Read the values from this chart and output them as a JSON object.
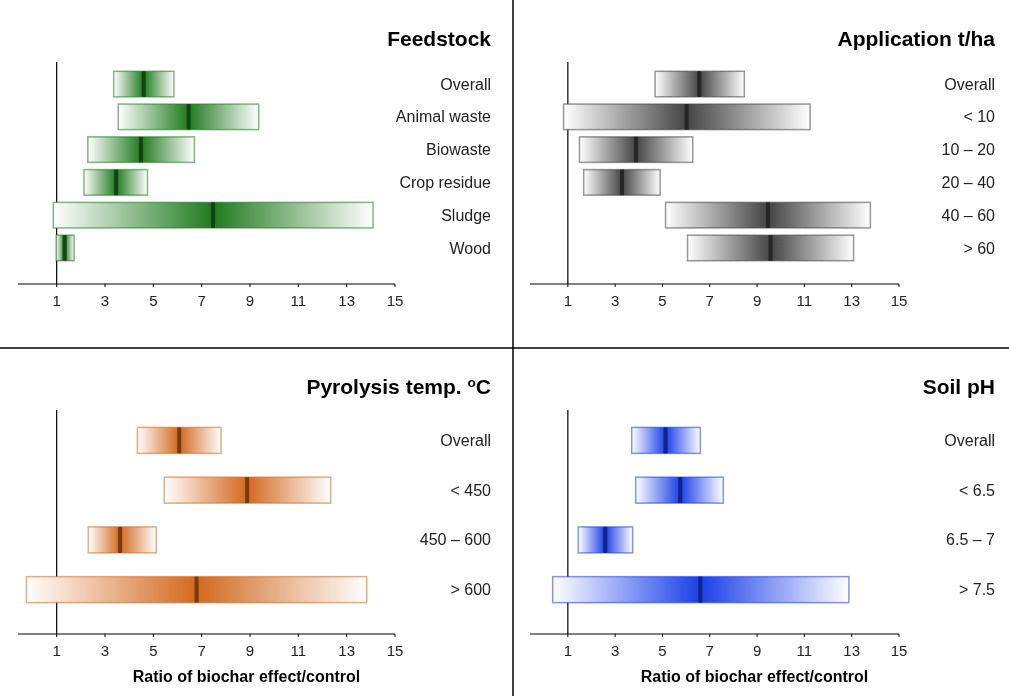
{
  "chart_data": [
    {
      "type": "box",
      "title": "Feedstock",
      "orientation": "horizontal",
      "color": "#1f7a1f",
      "categories": [
        "Overall",
        "Animal waste",
        "Biowaste",
        "Crop residue",
        "Sludge",
        "Wood"
      ],
      "boxes": [
        {
          "low": 3.36,
          "q1": 3.36,
          "median": 4.6,
          "q3": 5.85,
          "high": 5.85
        },
        {
          "low": 3.55,
          "q1": 3.55,
          "median": 6.46,
          "q3": 9.36,
          "high": 9.36
        },
        {
          "low": 2.29,
          "q1": 2.29,
          "median": 4.49,
          "q3": 6.7,
          "high": 6.7
        },
        {
          "low": 2.13,
          "q1": 2.13,
          "median": 3.46,
          "q3": 4.76,
          "high": 4.76
        },
        {
          "low": 0.86,
          "q1": 0.86,
          "median": 7.47,
          "q3": 14.09,
          "high": 14.09
        },
        {
          "low": 0.98,
          "q1": 0.98,
          "median": 1.33,
          "q3": 1.72,
          "high": 1.72
        }
      ],
      "xlim": [
        -0.6,
        15
      ],
      "xticks": [
        1,
        3,
        5,
        7,
        9,
        11,
        13,
        15
      ],
      "ref_lines": [
        {
          "axis": "x",
          "value": 1,
          "color": "#000000"
        }
      ],
      "grid": false
    },
    {
      "type": "box",
      "title": "Application t/ha",
      "orientation": "horizontal",
      "color": "#444444",
      "categories": [
        "Overall",
        "< 10",
        "10 – 20",
        "20 – 40",
        "40 – 60",
        "> 60"
      ],
      "boxes": [
        {
          "low": 4.69,
          "q1": 4.69,
          "median": 6.56,
          "q3": 8.46,
          "high": 8.46
        },
        {
          "low": 0.82,
          "q1": 0.82,
          "median": 6.02,
          "q3": 11.24,
          "high": 11.24
        },
        {
          "low": 1.49,
          "q1": 1.49,
          "median": 3.88,
          "q3": 6.28,
          "high": 6.28
        },
        {
          "low": 1.67,
          "q1": 1.67,
          "median": 3.29,
          "q3": 4.9,
          "high": 4.9
        },
        {
          "low": 5.13,
          "q1": 5.13,
          "median": 9.46,
          "q3": 13.79,
          "high": 13.79
        },
        {
          "low": 6.06,
          "q1": 6.06,
          "median": 9.57,
          "q3": 13.08,
          "high": 13.08
        }
      ],
      "xlim": [
        -0.6,
        15
      ],
      "xticks": [
        1,
        3,
        5,
        7,
        9,
        11,
        13,
        15
      ],
      "ref_lines": [
        {
          "axis": "x",
          "value": 1,
          "color": "#000000"
        }
      ],
      "grid": false
    },
    {
      "type": "box",
      "title": "Pyrolysis temp. $^{o}$C",
      "xlabel": "Ratio of biochar effect/control",
      "orientation": "horizontal",
      "color": "#d2691e",
      "categories": [
        "Overall",
        "< 450",
        "450 – 600",
        "> 600"
      ],
      "boxes": [
        {
          "low": 4.34,
          "q1": 4.34,
          "median": 6.07,
          "q3": 7.8,
          "high": 7.8
        },
        {
          "low": 5.45,
          "q1": 5.45,
          "median": 8.88,
          "q3": 12.34,
          "high": 12.34
        },
        {
          "low": 2.31,
          "q1": 2.31,
          "median": 3.62,
          "q3": 5.12,
          "high": 5.12
        },
        {
          "low": -0.25,
          "q1": -0.25,
          "median": 6.79,
          "q3": 13.83,
          "high": 13.83
        }
      ],
      "xlim": [
        -0.6,
        15
      ],
      "xticks": [
        1,
        3,
        5,
        7,
        9,
        11,
        13,
        15
      ],
      "ref_lines": [
        {
          "axis": "x",
          "value": 1,
          "color": "#000000"
        }
      ],
      "grid": false
    },
    {
      "type": "box",
      "title": "Soil pH",
      "xlabel": "Ratio of biochar effect/control",
      "orientation": "horizontal",
      "color": "#1a3fe8",
      "categories": [
        "Overall",
        "< 6.5",
        "6.5 – 7",
        "> 7.5"
      ],
      "boxes": [
        {
          "low": 3.7,
          "q1": 3.7,
          "median": 5.13,
          "q3": 6.6,
          "high": 6.6
        },
        {
          "low": 3.87,
          "q1": 3.87,
          "median": 5.75,
          "q3": 7.57,
          "high": 7.57
        },
        {
          "low": 1.44,
          "q1": 1.44,
          "median": 2.58,
          "q3": 3.74,
          "high": 3.74
        },
        {
          "low": 0.36,
          "q1": 0.36,
          "median": 6.6,
          "q3": 12.88,
          "high": 12.88
        }
      ],
      "xlim": [
        -0.6,
        15
      ],
      "xticks": [
        1,
        3,
        5,
        7,
        9,
        11,
        13,
        15
      ],
      "ref_lines": [
        {
          "axis": "x",
          "value": 1,
          "color": "#000000"
        }
      ],
      "grid": false
    }
  ]
}
